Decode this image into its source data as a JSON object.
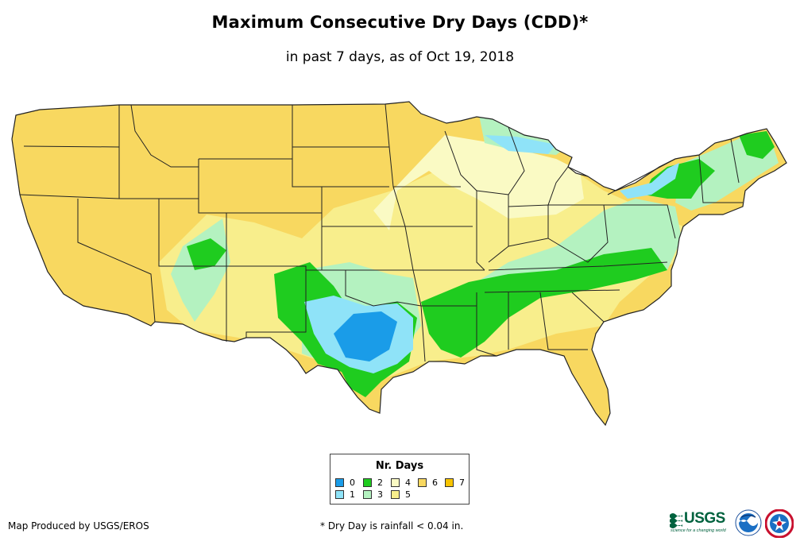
{
  "title": "Maximum Consecutive Dry Days (CDD)*",
  "subtitle": "in past 7 days, as of Oct 19, 2018",
  "legend": {
    "title": "Nr. Days",
    "items": [
      {
        "label": "0",
        "color": "#1a9ce8"
      },
      {
        "label": "1",
        "color": "#8fe3f8"
      },
      {
        "label": "2",
        "color": "#1fcc1f"
      },
      {
        "label": "3",
        "color": "#b4f2c0"
      },
      {
        "label": "4",
        "color": "#fafac4"
      },
      {
        "label": "5",
        "color": "#f8ee8c"
      },
      {
        "label": "6",
        "color": "#f8d860"
      },
      {
        "label": "7",
        "color": "#f8c400"
      }
    ]
  },
  "footer": {
    "credit": "Map Produced by USGS/EROS",
    "footnote": "* Dry Day is rainfall < 0.04 in."
  },
  "logos": {
    "usgs_word": "USGS",
    "usgs_tagline": "science for a changing world"
  },
  "colors": {
    "dry6": "#f8d860",
    "dry5": "#f8ee8c",
    "dry4": "#fafac4",
    "wet3": "#b4f2c0",
    "wet2": "#1fcc1f",
    "wet1": "#8fe3f8",
    "wet0": "#1a9ce8",
    "border": "#222222"
  }
}
